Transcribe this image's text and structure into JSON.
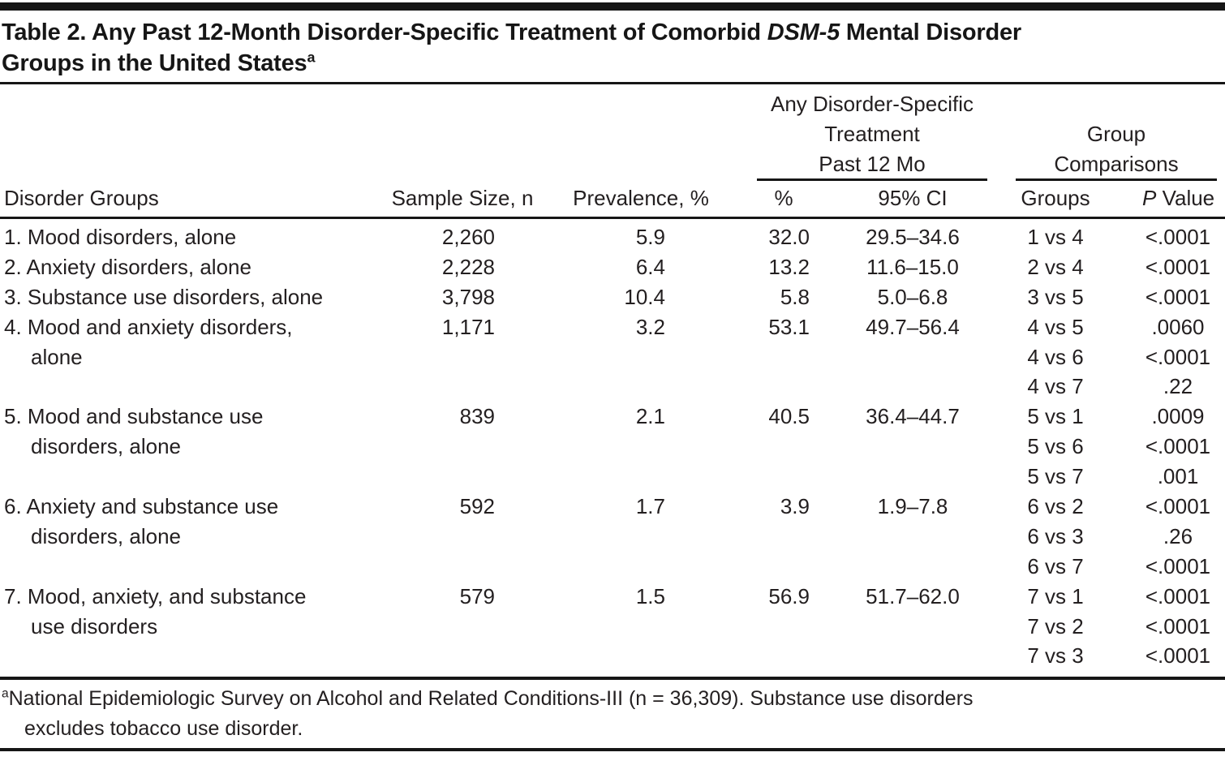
{
  "title": {
    "part1": "Table 2. Any Past 12-Month Disorder-Specific Treatment of Comorbid ",
    "italic": "DSM-5",
    "part2": " Mental Disorder",
    "line2": "Groups in the United States",
    "marker": "a"
  },
  "table": {
    "spanner_treatment": {
      "line1": "Any Disorder-Specific",
      "line2": "Treatment",
      "line3": "Past 12 Mo"
    },
    "spanner_comparisons": {
      "line1": "Group",
      "line2": "Comparisons"
    },
    "columns": {
      "disorder": "Disorder Groups",
      "sample": "Sample Size, n",
      "prevalence": "Prevalence, %",
      "pct": "%",
      "ci": "95% CI",
      "groups": "Groups",
      "p_italic": "P",
      "p_rest": " Value"
    },
    "rows": [
      {
        "name1": "1. Mood disorders, alone",
        "sample": "2,260",
        "prevalence": "5.9",
        "pct": "32.0",
        "ci": "29.5–34.6",
        "comparisons": [
          {
            "groups": "1 vs 4",
            "p": "<.0001"
          }
        ]
      },
      {
        "name1": "2. Anxiety disorders, alone",
        "sample": "2,228",
        "prevalence": "6.4",
        "pct": "13.2",
        "ci": "11.6–15.0",
        "comparisons": [
          {
            "groups": "2 vs 4",
            "p": "<.0001"
          }
        ]
      },
      {
        "name1": "3. Substance use disorders, alone",
        "sample": "3,798",
        "prevalence": "10.4",
        "pct": "5.8",
        "ci": "5.0–6.8",
        "comparisons": [
          {
            "groups": "3 vs 5",
            "p": "<.0001"
          }
        ]
      },
      {
        "name1": "4. Mood and anxiety disorders,",
        "name2": "alone",
        "sample": "1,171",
        "prevalence": "3.2",
        "pct": "53.1",
        "ci": "49.7–56.4",
        "comparisons": [
          {
            "groups": "4 vs 5",
            "p": ".0060"
          },
          {
            "groups": "4 vs 6",
            "p": "<.0001"
          },
          {
            "groups": "4 vs 7",
            "p": ".22"
          }
        ]
      },
      {
        "name1": "5. Mood and substance use",
        "name2": "disorders, alone",
        "sample": "839",
        "prevalence": "2.1",
        "pct": "40.5",
        "ci": "36.4–44.7",
        "comparisons": [
          {
            "groups": "5 vs 1",
            "p": ".0009"
          },
          {
            "groups": "5 vs 6",
            "p": "<.0001"
          },
          {
            "groups": "5 vs 7",
            "p": ".001"
          }
        ]
      },
      {
        "name1": "6. Anxiety and substance use",
        "name2": "disorders, alone",
        "sample": "592",
        "prevalence": "1.7",
        "pct": "3.9",
        "ci": "1.9–7.8",
        "comparisons": [
          {
            "groups": "6 vs 2",
            "p": "<.0001"
          },
          {
            "groups": "6 vs 3",
            "p": ".26"
          },
          {
            "groups": "6 vs 7",
            "p": "<.0001"
          }
        ]
      },
      {
        "name1": "7. Mood, anxiety, and substance",
        "name2": "use disorders",
        "sample": "579",
        "prevalence": "1.5",
        "pct": "56.9",
        "ci": "51.7–62.0",
        "comparisons": [
          {
            "groups": "7 vs 1",
            "p": "<.0001"
          },
          {
            "groups": "7 vs 2",
            "p": "<.0001"
          },
          {
            "groups": "7 vs 3",
            "p": "<.0001"
          }
        ]
      }
    ]
  },
  "footnote": {
    "marker": "a",
    "line1": "National Epidemiologic Survey on Alcohol and Related Conditions-III (n = 36,309). Substance use disorders",
    "line2": "excludes tobacco use disorder."
  }
}
